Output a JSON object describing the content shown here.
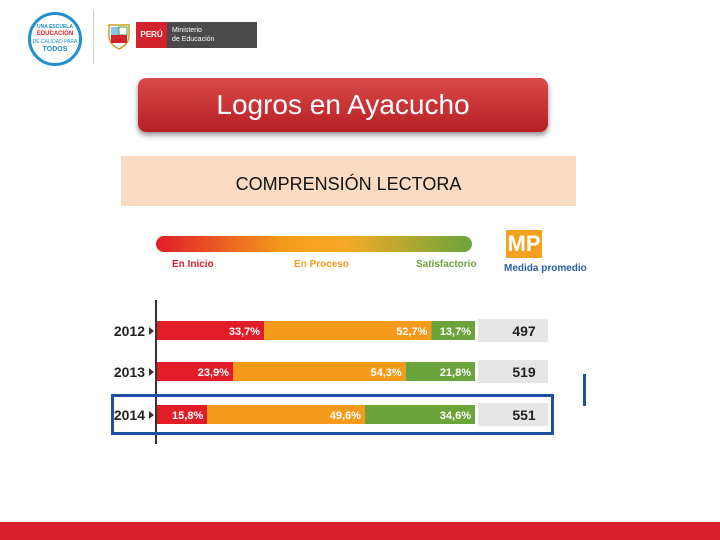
{
  "header": {
    "logo_circle": {
      "line1": "UNA ESCUELA",
      "line2": "EDUCACIÓN",
      "line3": "DE CALIDAD PARA",
      "line4": "TODOS"
    },
    "ministry": {
      "country": "PERÚ",
      "line1": "Ministerio",
      "line2": "de Educación"
    }
  },
  "title": "Logros en Ayacucho",
  "subtitle": "COMPRENSIÓN LECTORA",
  "legend": {
    "levels": [
      "En Inicio",
      "En Proceso",
      "Satisfactorio"
    ],
    "mp_code": "MP",
    "mp_label": "Medida promedio"
  },
  "colors": {
    "inicio": "#e11d2a",
    "proceso": "#f59a1b",
    "satisfactorio": "#6aa43a",
    "score_bg": "#e6e6e6",
    "highlight": "#1e4fa3"
  },
  "chart_data": {
    "type": "bar",
    "orientation": "horizontal",
    "stacked": true,
    "categories": [
      "2012",
      "2013",
      "2014"
    ],
    "series": [
      {
        "name": "En Inicio",
        "values": [
          33.7,
          23.9,
          15.8
        ],
        "labels": [
          "33,7%",
          "23,9%",
          "15,8%"
        ]
      },
      {
        "name": "En Proceso",
        "values": [
          52.7,
          54.3,
          49.6
        ],
        "labels": [
          "52,7%",
          "54,3%",
          "49,6%"
        ]
      },
      {
        "name": "Satisfactorio",
        "values": [
          13.7,
          21.8,
          34.6
        ],
        "labels": [
          "13,7%",
          "21,8%",
          "34,6%"
        ]
      }
    ],
    "mp_values": [
      "497",
      "519",
      "551"
    ],
    "highlighted_category": "2014",
    "xlim": [
      0,
      100
    ]
  }
}
